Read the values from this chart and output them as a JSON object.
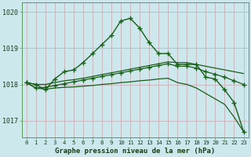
{
  "title": "Graphe pression niveau de la mer (hPa)",
  "background_color": "#cce8ec",
  "grid_color": "#aacdd4",
  "line_color": "#1a5c1a",
  "x_ticks": [
    0,
    1,
    2,
    3,
    4,
    5,
    6,
    7,
    8,
    9,
    10,
    11,
    12,
    13,
    14,
    15,
    16,
    17,
    18,
    19,
    20,
    21,
    22,
    23
  ],
  "ylim": [
    1016.55,
    1020.25
  ],
  "yticks": [
    1017,
    1018,
    1019,
    1020
  ],
  "series": {
    "line_peaked": [
      1018.05,
      1018.0,
      1017.85,
      1018.15,
      1018.35,
      1018.4,
      1018.6,
      1018.85,
      1019.1,
      1019.35,
      1019.75,
      1019.82,
      1019.55,
      1019.15,
      1018.85,
      1018.85,
      1018.55,
      1018.55,
      1018.55,
      1018.2,
      1018.15,
      1017.85,
      1017.5,
      1016.7
    ],
    "line_flat1": [
      1018.05,
      1018.0,
      1018.0,
      1018.05,
      1018.1,
      1018.13,
      1018.17,
      1018.22,
      1018.27,
      1018.32,
      1018.37,
      1018.42,
      1018.47,
      1018.52,
      1018.57,
      1018.62,
      1018.6,
      1018.6,
      1018.55,
      1018.5,
      1018.45,
      1018.4,
      1018.35,
      1018.3
    ],
    "line_flat2": [
      1018.05,
      1017.9,
      1017.92,
      1017.97,
      1018.02,
      1018.07,
      1018.12,
      1018.17,
      1018.22,
      1018.27,
      1018.32,
      1018.37,
      1018.42,
      1018.47,
      1018.52,
      1018.57,
      1018.5,
      1018.5,
      1018.45,
      1018.35,
      1018.28,
      1018.2,
      1018.1,
      1018.0
    ],
    "line_down": [
      1018.05,
      1017.9,
      1017.87,
      1017.9,
      1017.92,
      1017.93,
      1017.95,
      1017.97,
      1018.0,
      1018.02,
      1018.05,
      1018.07,
      1018.1,
      1018.12,
      1018.15,
      1018.17,
      1018.05,
      1018.0,
      1017.9,
      1017.75,
      1017.6,
      1017.45,
      1017.1,
      1016.7
    ]
  }
}
